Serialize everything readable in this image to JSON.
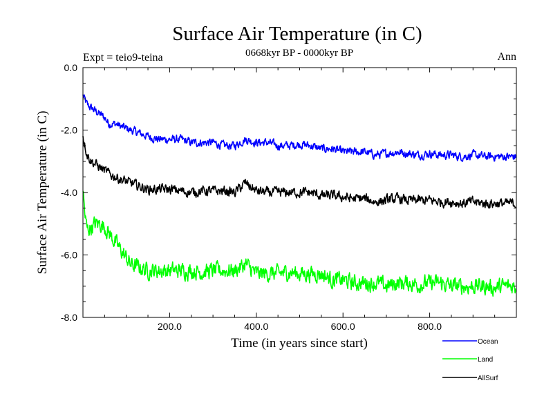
{
  "chart_data": {
    "type": "line",
    "title": "Surface Air Temperature (in C)",
    "subtitle": "0668kyr BP - 0000kyr BP",
    "experiment_label": "Expt = teio9-teina",
    "season_label": "Ann",
    "xlabel": "Time (in years since start)",
    "ylabel": "Surface Air Temperature (in C)",
    "xlim": [
      0,
      1000
    ],
    "ylim": [
      -8.0,
      0.0
    ],
    "x_ticks": [
      200,
      400,
      600,
      800
    ],
    "x_tick_labels": [
      "200.0",
      "400.0",
      "600.0",
      "800.0"
    ],
    "y_ticks": [
      0,
      -2,
      -4,
      -6,
      -8
    ],
    "y_tick_labels": [
      "0.0",
      "-2.0",
      "-4.0",
      "-6.0",
      "-8.0"
    ],
    "grid": false,
    "legend_position": "bottom-right",
    "series": [
      {
        "name": "Ocean",
        "color": "#0000ff",
        "x": [
          0,
          10,
          20,
          30,
          40,
          50,
          60,
          75,
          90,
          110,
          130,
          150,
          175,
          200,
          225,
          250,
          275,
          300,
          325,
          350,
          375,
          400,
          425,
          450,
          475,
          500,
          525,
          550,
          575,
          600,
          625,
          650,
          675,
          700,
          725,
          750,
          775,
          800,
          825,
          850,
          875,
          900,
          925,
          950,
          975,
          999
        ],
        "values": [
          -0.9,
          -1.2,
          -1.3,
          -1.4,
          -1.5,
          -1.6,
          -1.8,
          -1.8,
          -1.9,
          -2.0,
          -2.1,
          -2.2,
          -2.3,
          -2.3,
          -2.3,
          -2.4,
          -2.4,
          -2.4,
          -2.5,
          -2.5,
          -2.3,
          -2.4,
          -2.4,
          -2.5,
          -2.5,
          -2.45,
          -2.5,
          -2.6,
          -2.6,
          -2.7,
          -2.7,
          -2.7,
          -2.8,
          -2.75,
          -2.7,
          -2.75,
          -2.8,
          -2.75,
          -2.8,
          -2.8,
          -2.85,
          -2.8,
          -2.85,
          -2.85,
          -2.85,
          -2.85
        ]
      },
      {
        "name": "Land",
        "color": "#00ff00",
        "x": [
          0,
          5,
          10,
          20,
          30,
          40,
          50,
          60,
          75,
          90,
          100,
          110,
          130,
          150,
          175,
          200,
          225,
          250,
          275,
          300,
          325,
          350,
          375,
          400,
          425,
          450,
          475,
          500,
          525,
          550,
          575,
          600,
          625,
          650,
          675,
          700,
          725,
          750,
          775,
          800,
          825,
          850,
          875,
          900,
          925,
          950,
          975,
          999
        ],
        "values": [
          -3.9,
          -4.8,
          -5.2,
          -5.1,
          -5.0,
          -5.0,
          -5.1,
          -5.3,
          -5.6,
          -5.9,
          -6.1,
          -6.3,
          -6.4,
          -6.5,
          -6.5,
          -6.5,
          -6.5,
          -6.5,
          -6.55,
          -6.5,
          -6.5,
          -6.5,
          -6.3,
          -6.6,
          -6.6,
          -6.6,
          -6.55,
          -6.6,
          -6.6,
          -6.6,
          -6.8,
          -6.8,
          -6.9,
          -6.9,
          -6.9,
          -7.0,
          -6.9,
          -6.9,
          -6.95,
          -6.9,
          -6.9,
          -7.0,
          -7.0,
          -7.0,
          -7.0,
          -7.05,
          -7.0,
          -7.0
        ]
      },
      {
        "name": "AllSurf",
        "color": "#000000",
        "x": [
          0,
          10,
          20,
          30,
          40,
          50,
          60,
          75,
          90,
          110,
          130,
          150,
          175,
          200,
          225,
          250,
          275,
          300,
          325,
          350,
          375,
          400,
          425,
          450,
          475,
          500,
          525,
          550,
          575,
          600,
          625,
          650,
          675,
          700,
          725,
          750,
          775,
          800,
          825,
          850,
          875,
          900,
          925,
          950,
          975,
          999
        ],
        "values": [
          -2.2,
          -2.8,
          -3.0,
          -3.1,
          -3.2,
          -3.3,
          -3.4,
          -3.5,
          -3.6,
          -3.7,
          -3.8,
          -3.9,
          -3.9,
          -3.9,
          -3.95,
          -4.0,
          -3.95,
          -3.95,
          -3.95,
          -4.0,
          -3.7,
          -3.95,
          -4.0,
          -4.0,
          -4.0,
          -4.0,
          -4.0,
          -4.1,
          -4.1,
          -4.15,
          -4.2,
          -4.2,
          -4.3,
          -4.25,
          -4.2,
          -4.25,
          -4.25,
          -4.25,
          -4.3,
          -4.3,
          -4.35,
          -4.3,
          -4.35,
          -4.35,
          -4.35,
          -4.35
        ]
      }
    ]
  }
}
